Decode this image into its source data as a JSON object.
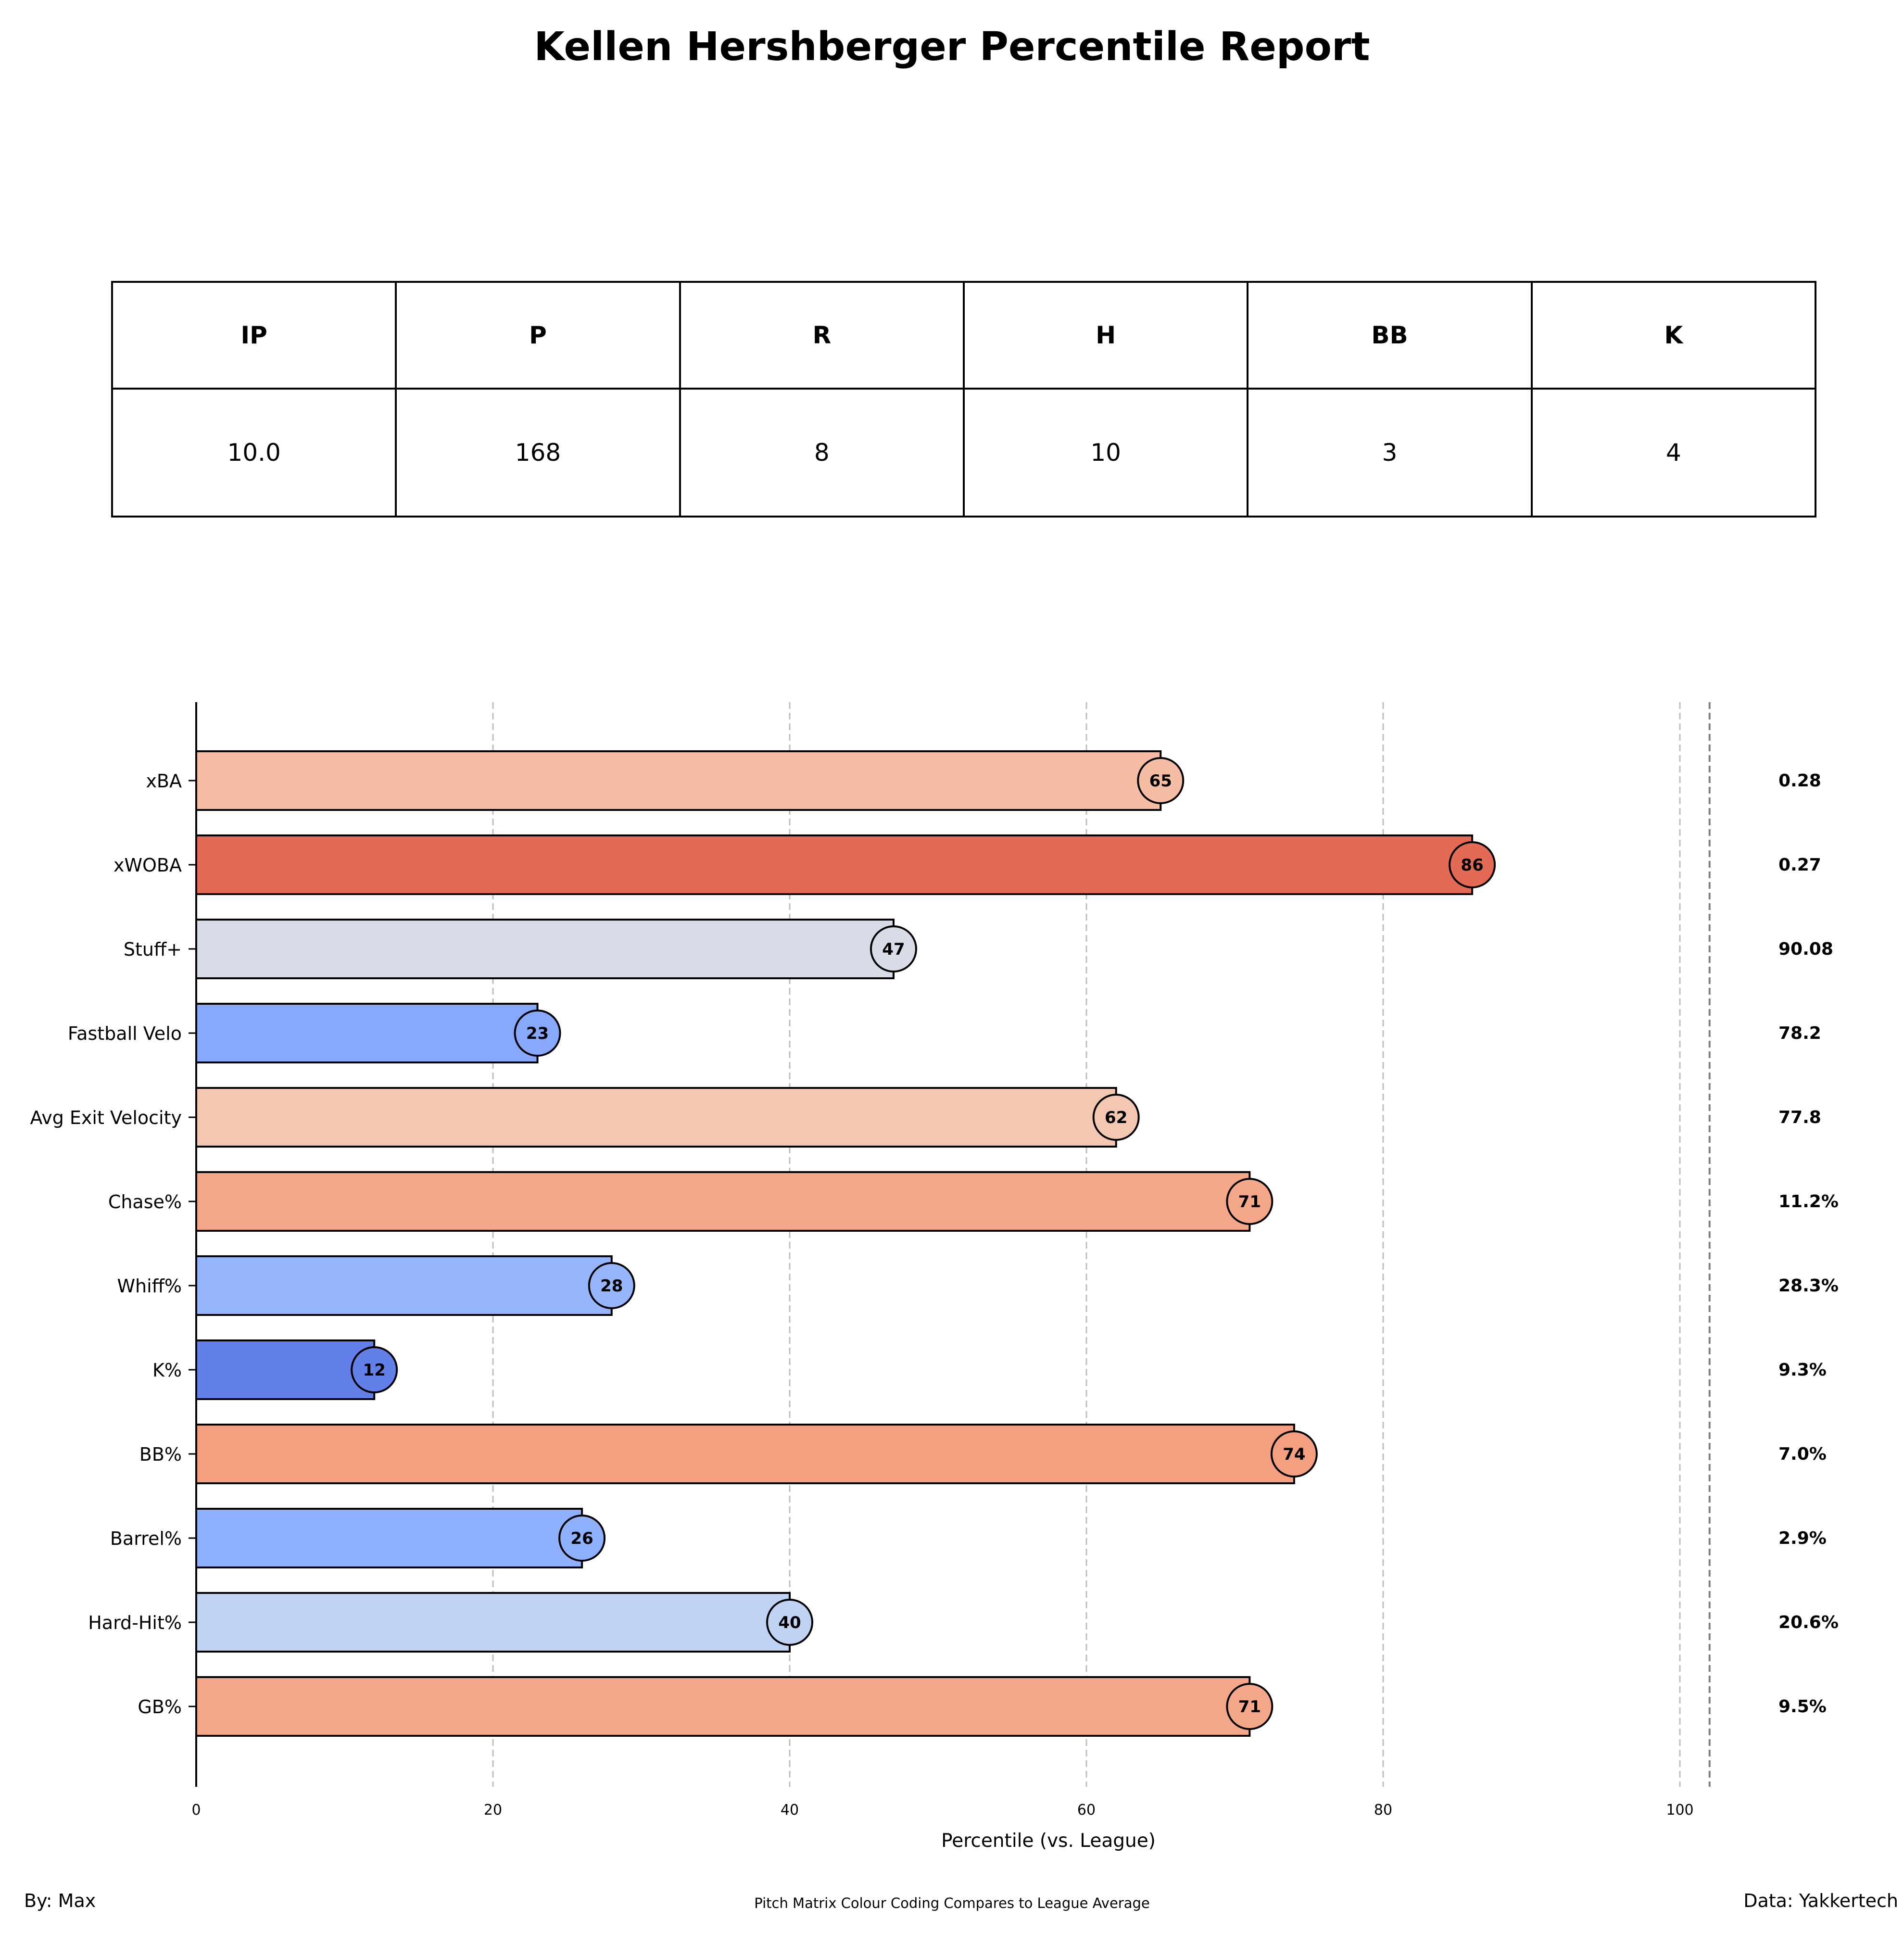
{
  "title": "Kellen Hershberger Percentile Report",
  "stats_table": {
    "headers": [
      "IP",
      "P",
      "R",
      "H",
      "BB",
      "K"
    ],
    "values": [
      "10.0",
      "168",
      "8",
      "10",
      "3",
      "4"
    ]
  },
  "chart_data": {
    "type": "bar",
    "orientation": "horizontal",
    "xlabel": "Percentile (vs. League)",
    "xlim": [
      0,
      102
    ],
    "xticks": [
      0,
      20,
      40,
      60,
      80,
      100
    ],
    "grid": "vertical dashed",
    "categories": [
      "xBA",
      "xWOBA",
      "Stuff+",
      "Fastball Velo",
      "Avg Exit Velocity",
      "Chase%",
      "Whiff%",
      "K%",
      "BB%",
      "Barrel%",
      "Hard-Hit%",
      "GB%"
    ],
    "values": [
      65,
      86,
      47,
      23,
      62,
      71,
      28,
      12,
      74,
      26,
      40,
      71
    ],
    "stat_values": [
      "0.28",
      "0.27",
      "90.08",
      "78.2",
      "77.8",
      "11.2%",
      "28.3%",
      "9.3%",
      "7.0%",
      "2.9%",
      "20.6%",
      "9.5%"
    ],
    "colors": [
      "#f5bda3",
      "#e36a54",
      "#d8dce6",
      "#87a8fb",
      "#f3c7b1",
      "#f5a889",
      "#97b5fd",
      "#6380e9",
      "#f39f80",
      "#8fb0fd",
      "#c0d3f4",
      "#f5a889"
    ]
  },
  "footer": {
    "author": "By: Max",
    "note": "Pitch Matrix Colour Coding Compares to League Average",
    "source": "Data: Yakkertech"
  }
}
